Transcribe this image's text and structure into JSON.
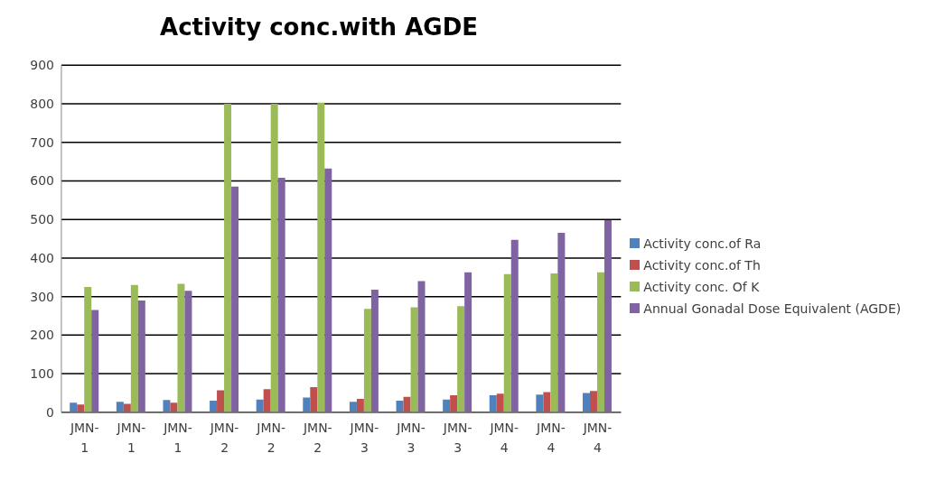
{
  "chart_data": {
    "type": "bar",
    "title": "Activity conc.with AGDE",
    "categories": [
      "JMN-1",
      "JMN-1",
      "JMN-1",
      "JMN-2",
      "JMN-2",
      "JMN-2",
      "JMN-3",
      "JMN-3",
      "JMN-3",
      "JMN-4",
      "JMN-4",
      "JMN-4"
    ],
    "series": [
      {
        "name": "Activity conc.of Ra",
        "color": "#4f81bd",
        "values": [
          25,
          27,
          32,
          30,
          33,
          38,
          27,
          30,
          33,
          44,
          46,
          50
        ]
      },
      {
        "name": "Activity conc.of Th",
        "color": "#c0504d",
        "values": [
          20,
          22,
          25,
          57,
          60,
          65,
          35,
          40,
          44,
          48,
          52,
          55
        ]
      },
      {
        "name": "Activity conc. Of K",
        "color": "#9bbb59",
        "values": [
          325,
          330,
          333,
          800,
          800,
          803,
          268,
          272,
          275,
          358,
          360,
          363
        ]
      },
      {
        "name": "Annual Gonadal Dose Equivalent (AGDE)",
        "color": "#8064a2",
        "values": [
          265,
          290,
          315,
          585,
          608,
          632,
          318,
          340,
          363,
          447,
          465,
          498
        ]
      }
    ],
    "ylim": [
      0,
      900
    ],
    "yticks": [
      0,
      100,
      200,
      300,
      400,
      500,
      600,
      700,
      800,
      900
    ],
    "grid": "y",
    "legend": "right"
  }
}
